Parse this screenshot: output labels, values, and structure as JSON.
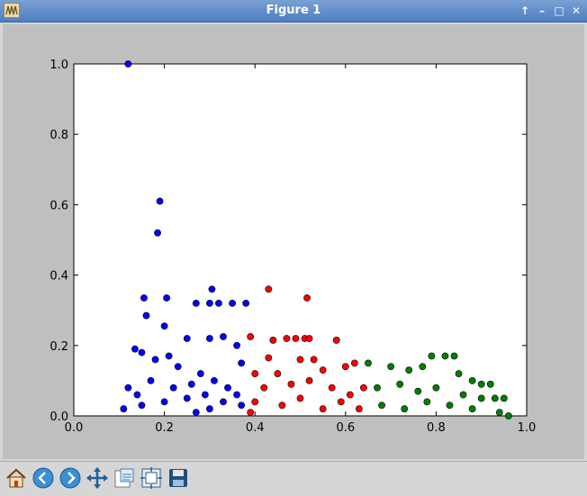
{
  "window": {
    "title": "Figure 1",
    "buttons": [
      "pin",
      "minimize",
      "maximize",
      "close"
    ]
  },
  "toolbar": {
    "tools": [
      "home-icon",
      "back-icon",
      "forward-icon",
      "pan-icon",
      "zoom-icon",
      "subplots-icon",
      "save-icon"
    ]
  },
  "chart_data": {
    "type": "scatter",
    "title": "",
    "xlabel": "",
    "ylabel": "",
    "xlim": [
      0.0,
      1.0
    ],
    "ylim": [
      0.0,
      1.0
    ],
    "xticks": [
      "0.0",
      "0.2",
      "0.4",
      "0.6",
      "0.8",
      "1.0"
    ],
    "yticks": [
      "0.0",
      "0.2",
      "0.4",
      "0.6",
      "0.8",
      "1.0"
    ],
    "grid": false,
    "series": [
      {
        "color": "#0000ff",
        "points": [
          [
            0.12,
            1.0
          ],
          [
            0.19,
            0.61
          ],
          [
            0.185,
            0.52
          ],
          [
            0.155,
            0.335
          ],
          [
            0.205,
            0.335
          ],
          [
            0.305,
            0.36
          ],
          [
            0.16,
            0.285
          ],
          [
            0.2,
            0.255
          ],
          [
            0.27,
            0.32
          ],
          [
            0.3,
            0.32
          ],
          [
            0.32,
            0.32
          ],
          [
            0.35,
            0.32
          ],
          [
            0.38,
            0.32
          ],
          [
            0.135,
            0.19
          ],
          [
            0.15,
            0.18
          ],
          [
            0.25,
            0.22
          ],
          [
            0.3,
            0.22
          ],
          [
            0.33,
            0.225
          ],
          [
            0.36,
            0.2
          ],
          [
            0.18,
            0.16
          ],
          [
            0.21,
            0.17
          ],
          [
            0.23,
            0.14
          ],
          [
            0.37,
            0.15
          ],
          [
            0.12,
            0.08
          ],
          [
            0.14,
            0.06
          ],
          [
            0.17,
            0.1
          ],
          [
            0.22,
            0.08
          ],
          [
            0.26,
            0.09
          ],
          [
            0.29,
            0.06
          ],
          [
            0.31,
            0.1
          ],
          [
            0.34,
            0.08
          ],
          [
            0.36,
            0.06
          ],
          [
            0.28,
            0.12
          ],
          [
            0.25,
            0.05
          ],
          [
            0.2,
            0.04
          ],
          [
            0.15,
            0.03
          ],
          [
            0.11,
            0.02
          ],
          [
            0.3,
            0.02
          ],
          [
            0.33,
            0.04
          ],
          [
            0.37,
            0.03
          ],
          [
            0.27,
            0.01
          ]
        ]
      },
      {
        "color": "#ff0000",
        "points": [
          [
            0.43,
            0.36
          ],
          [
            0.515,
            0.335
          ],
          [
            0.39,
            0.225
          ],
          [
            0.44,
            0.215
          ],
          [
            0.47,
            0.22
          ],
          [
            0.49,
            0.22
          ],
          [
            0.51,
            0.22
          ],
          [
            0.52,
            0.22
          ],
          [
            0.58,
            0.215
          ],
          [
            0.43,
            0.165
          ],
          [
            0.5,
            0.16
          ],
          [
            0.53,
            0.16
          ],
          [
            0.4,
            0.12
          ],
          [
            0.45,
            0.12
          ],
          [
            0.55,
            0.13
          ],
          [
            0.6,
            0.14
          ],
          [
            0.62,
            0.15
          ],
          [
            0.42,
            0.08
          ],
          [
            0.48,
            0.09
          ],
          [
            0.52,
            0.1
          ],
          [
            0.57,
            0.08
          ],
          [
            0.61,
            0.06
          ],
          [
            0.64,
            0.08
          ],
          [
            0.4,
            0.04
          ],
          [
            0.46,
            0.03
          ],
          [
            0.5,
            0.05
          ],
          [
            0.55,
            0.02
          ],
          [
            0.59,
            0.04
          ],
          [
            0.63,
            0.02
          ],
          [
            0.39,
            0.01
          ]
        ]
      },
      {
        "color": "#008000",
        "points": [
          [
            0.79,
            0.17
          ],
          [
            0.82,
            0.17
          ],
          [
            0.84,
            0.17
          ],
          [
            0.65,
            0.15
          ],
          [
            0.7,
            0.14
          ],
          [
            0.74,
            0.13
          ],
          [
            0.77,
            0.14
          ],
          [
            0.85,
            0.12
          ],
          [
            0.88,
            0.1
          ],
          [
            0.9,
            0.09
          ],
          [
            0.92,
            0.09
          ],
          [
            0.67,
            0.08
          ],
          [
            0.72,
            0.09
          ],
          [
            0.76,
            0.07
          ],
          [
            0.8,
            0.08
          ],
          [
            0.86,
            0.06
          ],
          [
            0.9,
            0.05
          ],
          [
            0.93,
            0.05
          ],
          [
            0.95,
            0.05
          ],
          [
            0.68,
            0.03
          ],
          [
            0.73,
            0.02
          ],
          [
            0.78,
            0.04
          ],
          [
            0.83,
            0.03
          ],
          [
            0.88,
            0.02
          ],
          [
            0.94,
            0.01
          ],
          [
            0.96,
            0.0
          ]
        ]
      }
    ]
  }
}
